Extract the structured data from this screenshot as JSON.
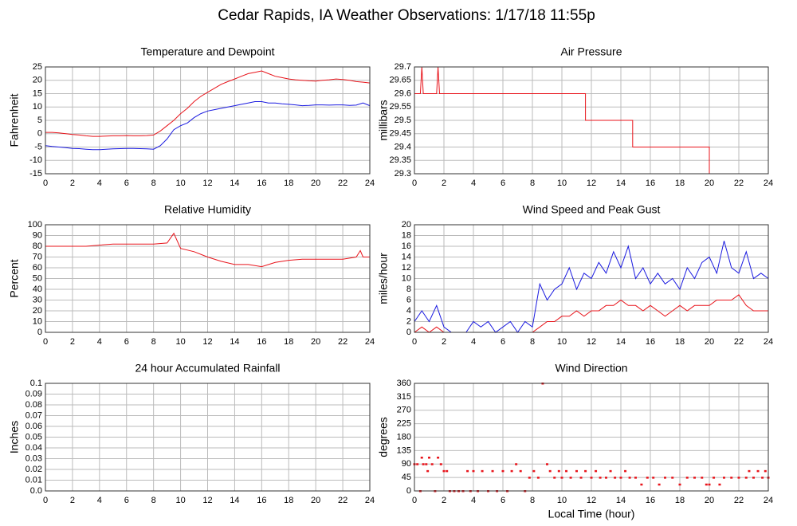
{
  "title": "Cedar Rapids, IA Weather Observations: 1/17/18 11:55p",
  "chart_data": [
    {
      "type": "line",
      "title": "Temperature and Dewpoint",
      "ylabel": "Fahrenheit",
      "grid": true,
      "xlim": [
        0,
        24
      ],
      "xticks": [
        0,
        2,
        4,
        6,
        8,
        10,
        12,
        14,
        16,
        18,
        20,
        22,
        24
      ],
      "ylim": [
        -15,
        25
      ],
      "yticks": [
        -15,
        -10,
        -5,
        0,
        5,
        10,
        15,
        20,
        25
      ],
      "x": [
        0,
        0.5,
        1,
        1.5,
        2,
        2.5,
        3,
        3.5,
        4,
        4.5,
        5,
        5.5,
        6,
        6.5,
        7,
        7.5,
        8,
        8.5,
        9,
        9.5,
        10,
        10.5,
        11,
        11.5,
        12,
        12.5,
        13,
        13.5,
        14,
        14.5,
        15,
        15.5,
        16,
        16.5,
        17,
        17.5,
        18,
        18.5,
        19,
        19.5,
        20,
        20.5,
        21,
        21.5,
        22,
        22.5,
        23,
        23.5,
        24
      ],
      "series": [
        {
          "color": "#e8141b",
          "values": [
            0.5,
            0.5,
            0.3,
            0,
            -0.3,
            -0.5,
            -0.8,
            -1,
            -1,
            -0.9,
            -0.8,
            -0.8,
            -0.7,
            -0.8,
            -0.8,
            -0.7,
            -0.5,
            1,
            3,
            5,
            7.5,
            9.5,
            12,
            14,
            15.5,
            17,
            18.5,
            19.5,
            20.5,
            21.5,
            22.5,
            23,
            23.5,
            22.5,
            21.5,
            21,
            20.5,
            20.2,
            20,
            19.8,
            19.7,
            20,
            20.2,
            20.5,
            20.3,
            20,
            19.5,
            19.3,
            19
          ]
        },
        {
          "color": "#1a1ae0",
          "values": [
            -4.5,
            -4.8,
            -5,
            -5.2,
            -5.5,
            -5.6,
            -5.8,
            -6,
            -6,
            -5.8,
            -5.7,
            -5.6,
            -5.5,
            -5.5,
            -5.6,
            -5.7,
            -5.8,
            -4.5,
            -2,
            1.5,
            3,
            4,
            6,
            7.5,
            8.5,
            9,
            9.5,
            10,
            10.5,
            11,
            11.5,
            12,
            12,
            11.5,
            11.5,
            11.2,
            11,
            10.8,
            10.5,
            10.6,
            10.8,
            10.8,
            10.7,
            10.8,
            10.8,
            10.6,
            10.7,
            11.5,
            10.5
          ]
        }
      ]
    },
    {
      "type": "line",
      "title": "Air Pressure",
      "ylabel": "millibars",
      "grid": true,
      "xlim": [
        0,
        24
      ],
      "xticks": [
        0,
        2,
        4,
        6,
        8,
        10,
        12,
        14,
        16,
        18,
        20,
        22,
        24
      ],
      "ylim": [
        29.3,
        29.7
      ],
      "yticks": [
        29.3,
        29.35,
        29.4,
        29.45,
        29.5,
        29.55,
        29.6,
        29.65,
        29.7
      ],
      "x": [
        0,
        0.4,
        0.5,
        0.6,
        1.5,
        1.6,
        1.7,
        11.6,
        11.6,
        14.8,
        14.8,
        20,
        20,
        24
      ],
      "series": [
        {
          "color": "#e8141b",
          "values": [
            29.6,
            29.6,
            29.7,
            29.6,
            29.6,
            29.7,
            29.6,
            29.6,
            29.5,
            29.5,
            29.4,
            29.4,
            29.3,
            29.3
          ]
        }
      ]
    },
    {
      "type": "line",
      "title": "Relative Humidity",
      "ylabel": "Percent",
      "grid": true,
      "xlim": [
        0,
        24
      ],
      "xticks": [
        0,
        2,
        4,
        6,
        8,
        10,
        12,
        14,
        16,
        18,
        20,
        22,
        24
      ],
      "ylim": [
        0,
        100
      ],
      "yticks": [
        0,
        10,
        20,
        30,
        40,
        50,
        60,
        70,
        80,
        90,
        100
      ],
      "x": [
        0,
        1,
        2,
        3,
        4,
        5,
        6,
        7,
        8,
        9,
        9.5,
        10,
        11,
        12,
        13,
        14,
        15,
        16,
        17,
        18,
        19,
        20,
        21,
        22,
        23,
        23.3,
        23.5,
        24
      ],
      "series": [
        {
          "color": "#e8141b",
          "values": [
            80,
            80,
            80,
            80,
            81,
            82,
            82,
            82,
            82,
            83,
            92,
            78,
            75,
            70,
            66,
            63,
            63,
            61,
            65,
            67,
            68,
            68,
            68,
            68,
            70,
            76,
            70,
            70
          ]
        }
      ]
    },
    {
      "type": "line",
      "title": "Wind Speed and Peak Gust",
      "ylabel": "miles/hour",
      "grid": true,
      "xlim": [
        0,
        24
      ],
      "xticks": [
        0,
        2,
        4,
        6,
        8,
        10,
        12,
        14,
        16,
        18,
        20,
        22,
        24
      ],
      "ylim": [
        0,
        20
      ],
      "yticks": [
        0,
        2,
        4,
        6,
        8,
        10,
        12,
        14,
        16,
        18,
        20
      ],
      "x": [
        0,
        0.5,
        1,
        1.5,
        2,
        2.5,
        3,
        3.5,
        4,
        4.5,
        5,
        5.5,
        6,
        6.5,
        7,
        7.5,
        8,
        8.5,
        9,
        9.5,
        10,
        10.5,
        11,
        11.5,
        12,
        12.5,
        13,
        13.5,
        14,
        14.5,
        15,
        15.5,
        16,
        16.5,
        17,
        17.5,
        18,
        18.5,
        19,
        19.5,
        20,
        20.5,
        21,
        21.5,
        22,
        22.5,
        23,
        23.5,
        24
      ],
      "series": [
        {
          "color": "#1a1ae0",
          "values": [
            2,
            4,
            2,
            5,
            1,
            0,
            0,
            0,
            2,
            1,
            2,
            0,
            1,
            2,
            0,
            2,
            1,
            9,
            6,
            8,
            9,
            12,
            8,
            11,
            10,
            13,
            11,
            15,
            12,
            16,
            10,
            12,
            9,
            11,
            9,
            10,
            8,
            12,
            10,
            13,
            14,
            11,
            17,
            12,
            11,
            15,
            10,
            11,
            10
          ]
        },
        {
          "color": "#e8141b",
          "values": [
            0,
            1,
            0,
            1,
            0,
            0,
            0,
            0,
            0,
            0,
            0,
            0,
            0,
            0,
            0,
            0,
            0,
            1,
            2,
            2,
            3,
            3,
            4,
            3,
            4,
            4,
            5,
            5,
            6,
            5,
            5,
            4,
            5,
            4,
            3,
            4,
            5,
            4,
            5,
            5,
            5,
            6,
            6,
            6,
            7,
            5,
            4,
            4,
            4
          ]
        }
      ]
    },
    {
      "type": "line",
      "title": "24 hour Accumulated Rainfall",
      "ylabel": "Inches",
      "grid": true,
      "xlim": [
        0,
        24
      ],
      "xticks": [
        0,
        2,
        4,
        6,
        8,
        10,
        12,
        14,
        16,
        18,
        20,
        22,
        24
      ],
      "ylim": [
        0,
        0.1
      ],
      "yticks": [
        {
          "value": 0,
          "label": "0.0"
        },
        0.01,
        0.02,
        0.03,
        0.04,
        0.05,
        0.06,
        0.07,
        0.08,
        0.09,
        0.1
      ],
      "x": [
        0,
        24
      ],
      "series": [
        {
          "color": "#b0308a",
          "values": [
            0,
            0
          ]
        }
      ]
    },
    {
      "type": "scatter",
      "title": "Wind Direction",
      "ylabel": "degrees",
      "xlabel": "Local Time (hour)",
      "grid": true,
      "xlim": [
        0,
        24
      ],
      "xticks": [
        0,
        2,
        4,
        6,
        8,
        10,
        12,
        14,
        16,
        18,
        20,
        22,
        24
      ],
      "ylim": [
        0,
        360
      ],
      "yticks": [
        0,
        45,
        90,
        135,
        180,
        225,
        270,
        315,
        360
      ],
      "x": [
        0,
        0.2,
        0.4,
        0.5,
        0.6,
        0.8,
        0.9,
        1,
        1.2,
        1.4,
        1.6,
        1.8,
        2,
        2.2,
        2.4,
        2.7,
        3,
        3.3,
        3.6,
        3.8,
        4,
        4.3,
        4.6,
        5,
        5.3,
        5.6,
        6,
        6.3,
        6.6,
        6.9,
        7.2,
        7.5,
        7.8,
        8.1,
        8.4,
        8.7,
        9,
        9.2,
        9.5,
        9.8,
        10,
        10.3,
        10.6,
        11,
        11.3,
        11.6,
        12,
        12.3,
        12.6,
        13,
        13.3,
        13.6,
        14,
        14.3,
        14.6,
        15,
        15.4,
        15.8,
        16.2,
        16.6,
        17,
        17.5,
        18,
        18.5,
        19,
        19.5,
        19.8,
        20,
        20.3,
        20.7,
        21,
        21.5,
        22,
        22.5,
        22.7,
        23,
        23.3,
        23.6,
        23.8,
        24
      ],
      "series": [
        {
          "color": "#e8141b",
          "values": [
            90,
            90,
            0,
            112,
            90,
            90,
            67,
            112,
            90,
            0,
            112,
            90,
            67,
            67,
            0,
            0,
            0,
            0,
            67,
            0,
            67,
            0,
            67,
            0,
            67,
            0,
            67,
            0,
            67,
            90,
            67,
            0,
            45,
            67,
            45,
            360,
            90,
            67,
            45,
            67,
            45,
            67,
            45,
            67,
            45,
            67,
            45,
            67,
            45,
            45,
            67,
            45,
            45,
            67,
            45,
            45,
            22,
            45,
            45,
            22,
            45,
            45,
            22,
            45,
            45,
            45,
            22,
            22,
            45,
            22,
            45,
            45,
            45,
            45,
            67,
            45,
            67,
            45,
            67,
            45
          ]
        }
      ]
    }
  ]
}
